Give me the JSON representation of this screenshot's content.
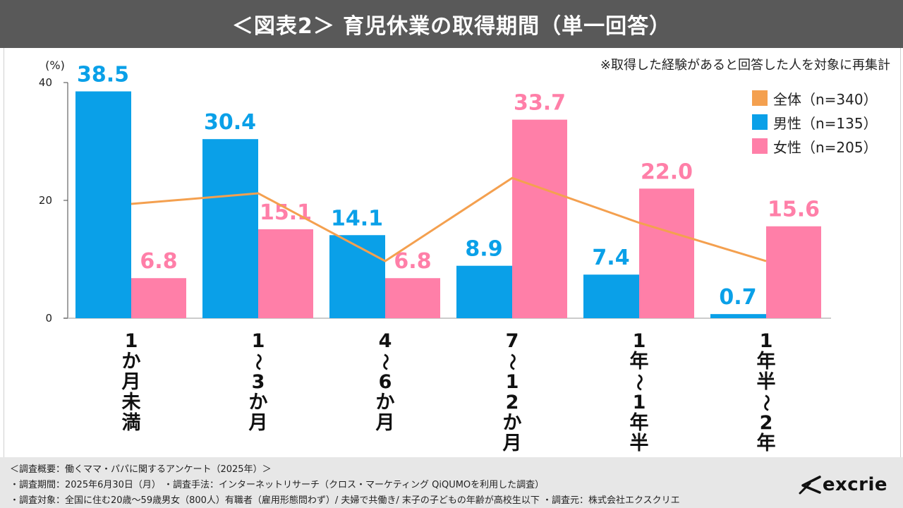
{
  "title": "＜図表2＞ 育児休業の取得期間（単一回答）",
  "note": "※取得した経験があると回答した人を対象に再集計",
  "chart_data": {
    "type": "bar",
    "title": "＜図表2＞ 育児休業の取得期間（単一回答）",
    "ylabel": "(%)",
    "ylim": [
      0,
      40
    ],
    "yticks": [
      0,
      20,
      40
    ],
    "categories": [
      "1か月未満",
      "1〜3か月",
      "4〜6か月",
      "7〜12か月",
      "1年〜1年半",
      "1年半〜2年"
    ],
    "category_labels": [
      [
        "1",
        "か",
        "月",
        "未",
        "満"
      ],
      [
        "1",
        "〜",
        "3",
        "か",
        "月"
      ],
      [
        "4",
        "〜",
        "6",
        "か",
        "月"
      ],
      [
        "7",
        "〜",
        "1",
        "2",
        "か",
        "月"
      ],
      [
        "1",
        "年",
        "〜",
        "1",
        "年",
        "半"
      ],
      [
        "1",
        "年",
        "半",
        "〜",
        "2",
        "年"
      ]
    ],
    "series": [
      {
        "name": "全体（n=340）",
        "type": "line",
        "color": "#f4a04f",
        "values": [
          19.4,
          21.2,
          9.7,
          23.8,
          16.2,
          9.7
        ]
      },
      {
        "name": "男性（n=135）",
        "type": "bar",
        "color": "#0aa0e8",
        "values": [
          38.5,
          30.4,
          14.1,
          8.9,
          7.4,
          0.7
        ],
        "labels": [
          "38.5",
          "30.4",
          "14.1",
          "8.9",
          "7.4",
          "0.7"
        ]
      },
      {
        "name": "女性（n=205）",
        "type": "bar",
        "color": "#ff7fa8",
        "values": [
          6.8,
          15.1,
          6.8,
          33.7,
          22.0,
          15.6
        ],
        "labels": [
          "6.8",
          "15.1",
          "6.8",
          "33.7",
          "22.0",
          "15.6"
        ]
      }
    ],
    "legend_position": "top-right",
    "grid": false
  },
  "footer": {
    "line1": "＜調査概要：働くママ・パパに関するアンケート（2025年）＞",
    "line2": "・調査期間：2025年6月30日（月） ・調査手法：インターネットリサーチ（クロス・マーケティング QiQUMOを利用した調査）",
    "line3": "・調査対象：全国に住む20歳～59歳男女（800人）有職者（雇用形態問わず）/ 夫婦で共働き/ 末子の子どもの年齢が高校生以下 ・調査元：株式会社エクスクリエ"
  },
  "logo": {
    "text": "excrie"
  }
}
